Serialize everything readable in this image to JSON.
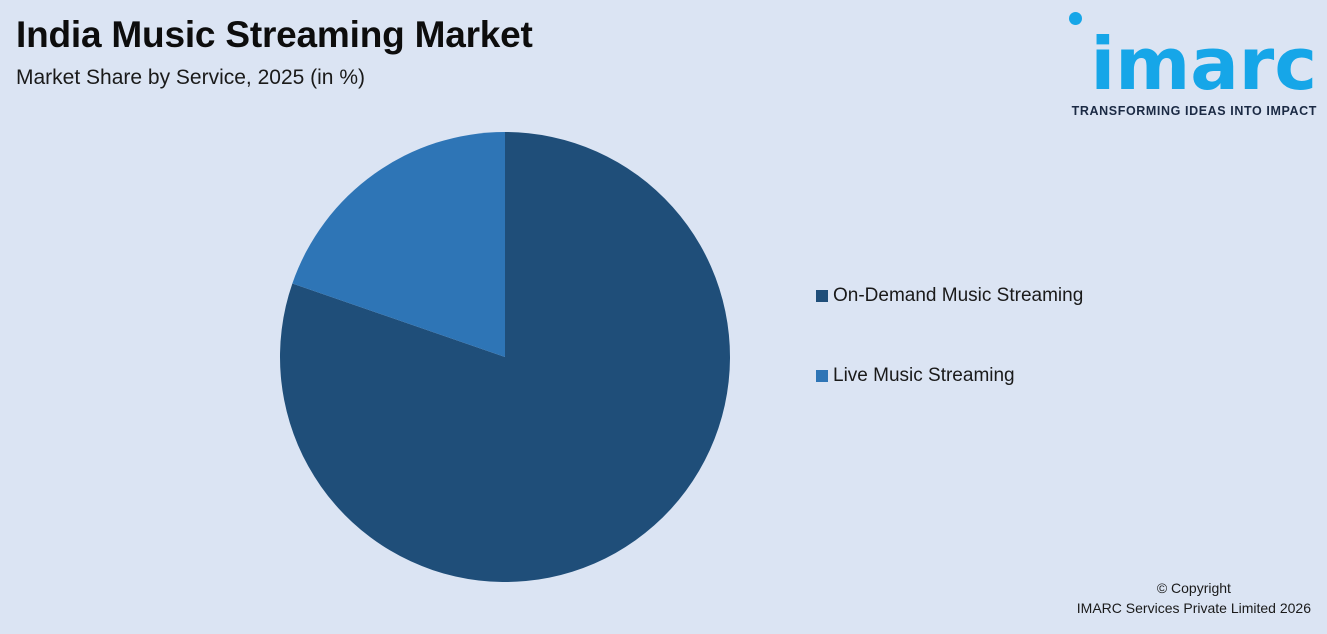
{
  "header": {
    "title": "India Music Streaming Market",
    "subtitle": "Market Share by Service, 2025 (in %)"
  },
  "logo": {
    "wordmark": "imarc",
    "tagline": "TRANSFORMING IDEAS INTO IMPACT",
    "color": "#16a6e8"
  },
  "chart_data": {
    "type": "pie",
    "title": "India Music Streaming Market",
    "subtitle": "Market Share by Service, 2025 (in %)",
    "categories": [
      "On-Demand Music Streaming",
      "Live Music Streaming"
    ],
    "values": [
      80.3,
      19.7
    ],
    "colors": [
      "#1f4e79",
      "#2e75b6"
    ],
    "legend_position": "right"
  },
  "legend": {
    "items": [
      {
        "label": "On-Demand Music Streaming",
        "color": "#1f4e79"
      },
      {
        "label": "Live Music Streaming",
        "color": "#2e75b6"
      }
    ]
  },
  "footer": {
    "copyright_line1": "© Copyright",
    "copyright_line2": "IMARC Services Private Limited 2026"
  }
}
